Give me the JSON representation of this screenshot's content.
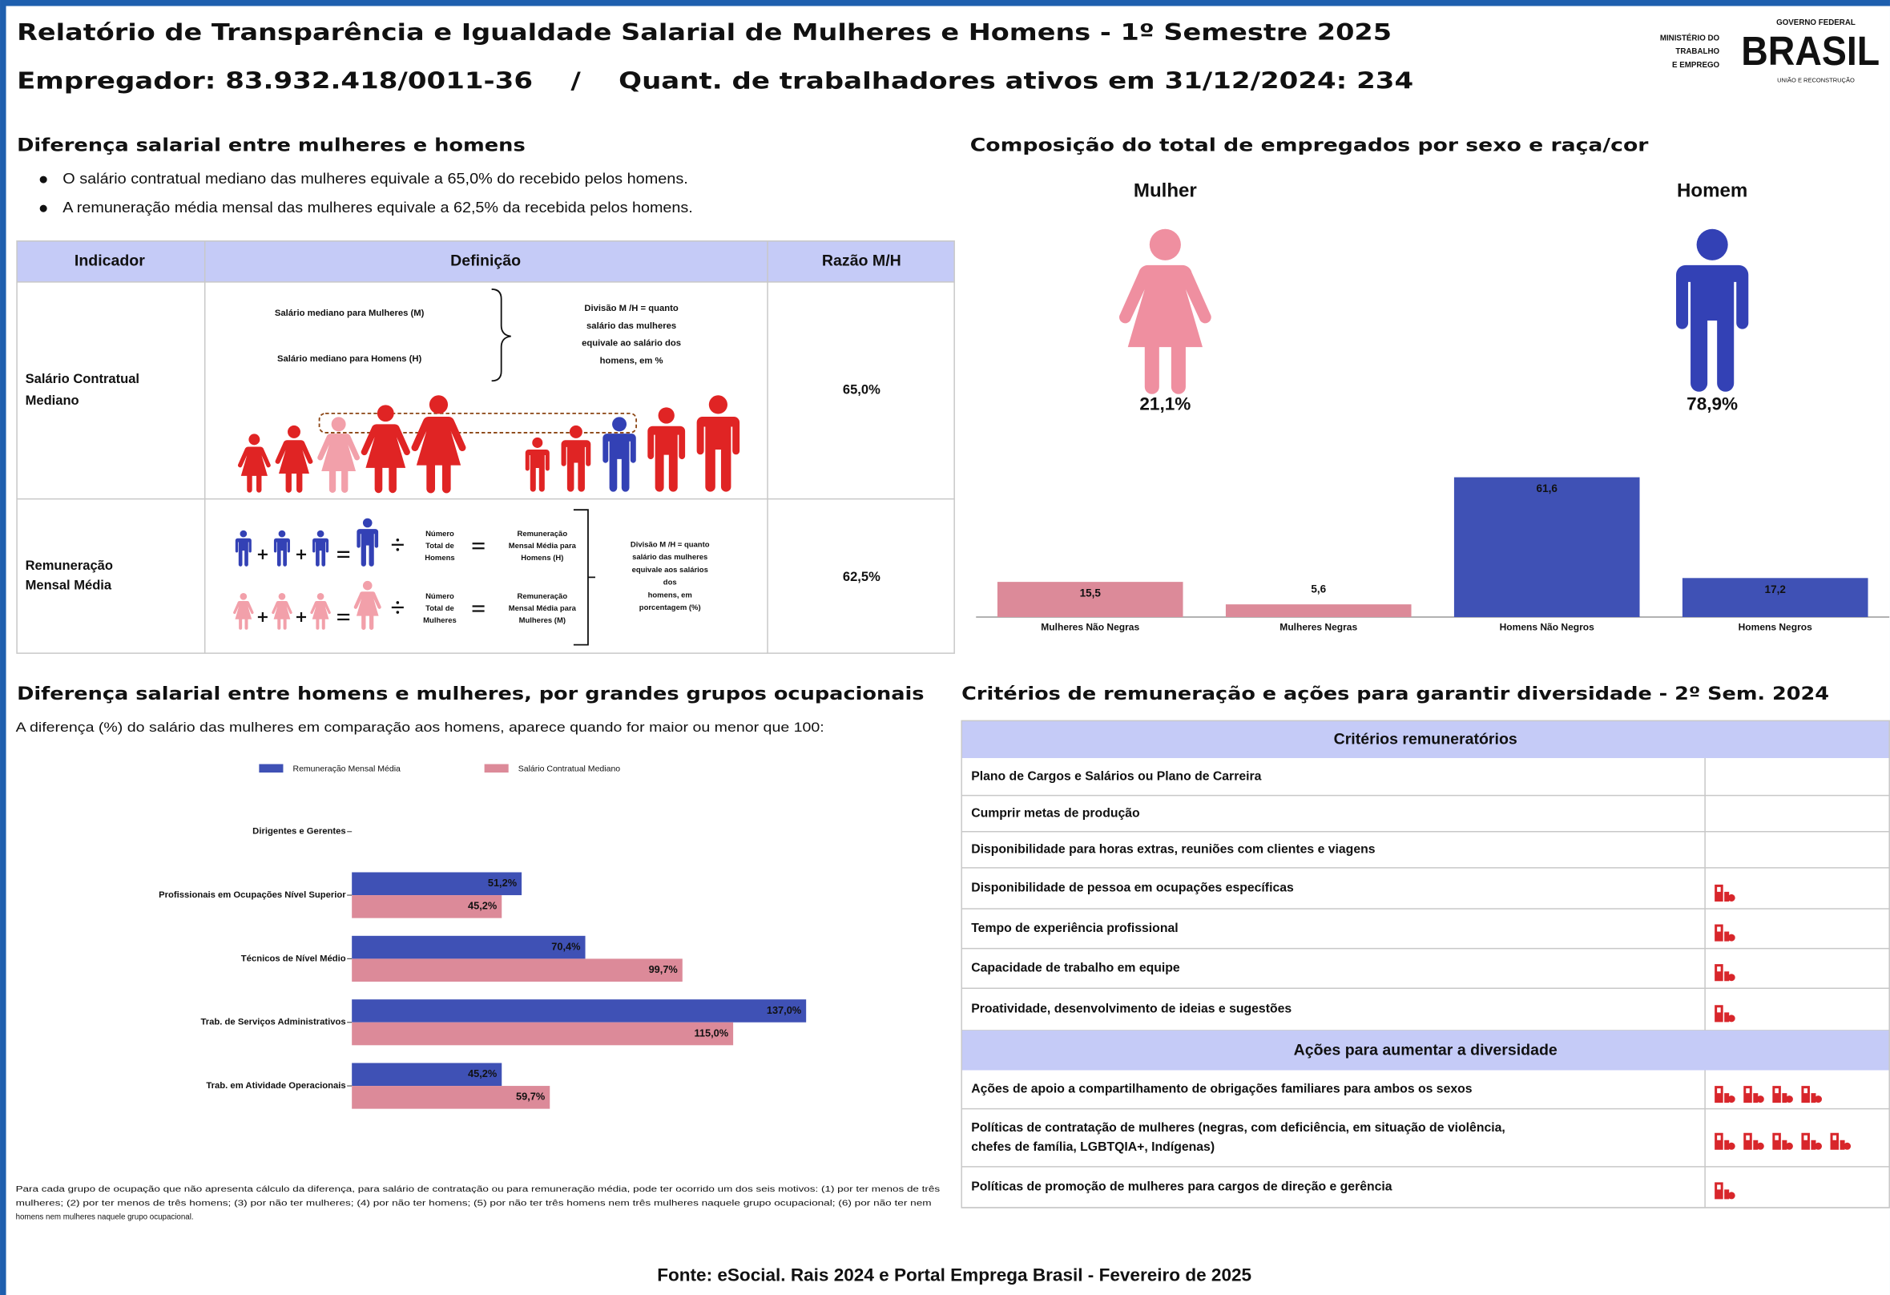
{
  "header": {
    "title": "Relatório de Transparência e Igualdade Salarial de Mulheres e Homens - 1º Semestre 2025",
    "subtitle": "Empregador: 83.932.418/0011-36    /    Quant. de trabalhadores ativos em 31/12/2024: 234",
    "logo_ministry": [
      "MINISTÉRIO DO",
      "TRABALHO",
      "E EMPREGO"
    ],
    "logo_government": "GOVERNO FEDERAL",
    "logo_brasil": "BRASIL",
    "logo_tagline": "UNIÃO E RECONSTRUÇÃO"
  },
  "salary_gap": {
    "title": "Diferença salarial entre mulheres e homens",
    "bullets": [
      "O salário contratual mediano das mulheres equivale a 65,0% do recebido pelos homens.",
      "A remuneração média mensal das mulheres equivale a 62,5% da recebida pelos homens."
    ],
    "table": {
      "columns": [
        "Indicador",
        "Definição",
        "Razão M/H"
      ],
      "rows": [
        {
          "indicator": [
            "Salário Contratual",
            "Mediano"
          ],
          "definition": {
            "women": "Salário mediano para Mulheres (M)",
            "men": "Salário mediano para Homens (H)",
            "division": [
              "Divisão M /H = quanto",
              "salário das mulheres",
              "equivale ao salário dos",
              "homens, em %"
            ]
          },
          "ratio": "65,0%"
        },
        {
          "indicator": [
            "Remuneração",
            "Mensal Média"
          ],
          "definition": {
            "men_count": [
              "Número",
              "Total de",
              "Homens"
            ],
            "men_pay": [
              "Remuneração",
              "Mensal Média para",
              "Homens (H)"
            ],
            "women_count": [
              "Número",
              "Total de",
              "Mulheres"
            ],
            "women_pay": [
              "Remuneração",
              "Mensal Média para",
              "Mulheres (M)"
            ],
            "division": [
              "Divisão M /H = quanto",
              "salário das mulheres",
              "equivale aos salários",
              "dos",
              "homens, em",
              "porcentagem (%)"
            ]
          },
          "ratio": "62,5%"
        }
      ]
    }
  },
  "composition": {
    "title": "Composição do total de empregados por sexo e raça/cor",
    "women_label": "Mulher",
    "women_share": "21,1%",
    "men_label": "Homem",
    "men_share": "78,9%"
  },
  "chart_data": [
    {
      "type": "bar",
      "categories": [
        "Mulheres Não Negras",
        "Mulheres Negras",
        "Homens Não Negros",
        "Homens Negros"
      ],
      "values": [
        15.5,
        5.6,
        61.6,
        17.2
      ],
      "value_labels": [
        "15,5",
        "5,6",
        "61,6",
        "17,2"
      ],
      "colors": [
        "#dc8a99",
        "#dc8a99",
        "#3f51b5",
        "#3f51b5"
      ]
    },
    {
      "type": "hbar",
      "title": "Diferença salarial entre homens e mulheres, por grandes grupos ocupacionais",
      "subtitle": "A diferença (%) do salário das mulheres em comparação aos homens, aparece quando for maior ou menor que 100:",
      "categories": [
        "Dirigentes e Gerentes",
        "Profissionais em Ocupações Nível Superior",
        "Técnicos de Nível Médio",
        "Trab. de Serviços Administrativos",
        "Trab. em Atividade Operacionais"
      ],
      "series": [
        {
          "name": "Remuneração Mensal Média",
          "color": "#3f51b5",
          "values": [
            null,
            51.2,
            70.4,
            137.0,
            45.2
          ],
          "value_labels": [
            null,
            "51,2%",
            "70,4%",
            "137,0%",
            "45,2%"
          ]
        },
        {
          "name": "Salário Contratual Mediano",
          "color": "#dc8a99",
          "values": [
            null,
            45.2,
            99.7,
            115.0,
            59.7
          ],
          "value_labels": [
            null,
            "45,2%",
            "99,7%",
            "115,0%",
            "59,7%"
          ]
        }
      ],
      "legend": "top",
      "note": [
        "Para cada grupo de ocupação que não apresenta cálculo da diferença, para salário de contratação ou para remuneração média, pode ter ocorrido um dos seis motivos: (1) por ter menos de três",
        "mulheres; (2) por ter menos de três homens; (3) por não ter mulheres; (4) por não ter homens; (5) por não ter três homens nem três mulheres naquele grupo ocupacional; (6) por não ter nem",
        "homens nem mulheres naquele grupo ocupacional."
      ]
    }
  ],
  "criteria": {
    "title": "Critérios de remuneração e ações para garantir diversidade - 2º Sem. 2024",
    "criteria_header": "Critérios remuneratórios",
    "criteria_rows": [
      "Plano de Cargos e Salários ou Plano de Carreira",
      "Cumprir metas de produção",
      "Disponibilidade para horas extras, reuniões com clientes e viagens",
      "Disponibilidade de pessoa em ocupações específicas",
      "Tempo de experiência profissional",
      "Capacidade de trabalho em equipe",
      "Proatividade, desenvolvimento de ideias e sugestões"
    ],
    "actions_header": "Ações para aumentar a diversidade",
    "actions_rows": [
      [
        "Ações de apoio a compartilhamento de obrigações familiares para ambos os sexos"
      ],
      [
        "Políticas de contratação de mulheres (negras, com deficiência, em situação de violência,",
        "chefes de família, LGBTQIA+, Indígenas)"
      ],
      [
        "Políticas de promoção de mulheres para cargos de direção e gerência"
      ]
    ]
  },
  "footer": {
    "source": "Fonte: eSocial. Rais 2024 e Portal Emprega Brasil - Fevereiro de 2025"
  }
}
